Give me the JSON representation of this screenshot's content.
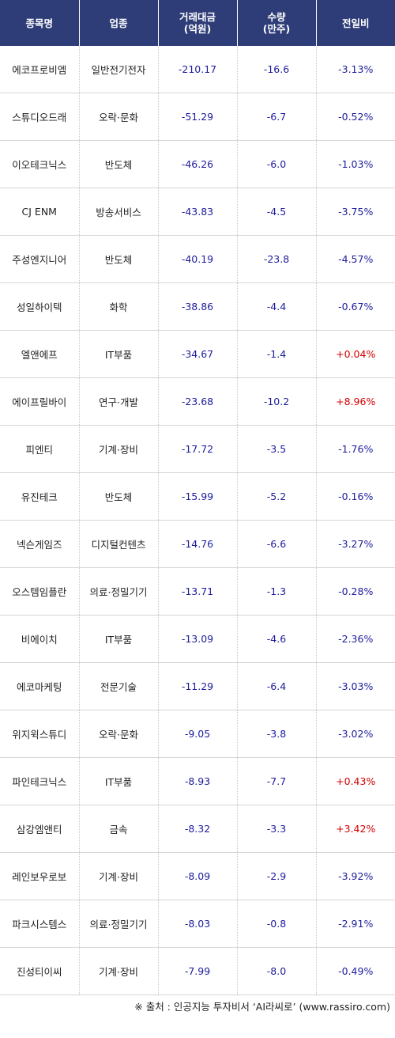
{
  "headers": {
    "name": "종목명",
    "sector": "업종",
    "amount_line1": "거래대금",
    "amount_line2": "(억원)",
    "qty_line1": "수량",
    "qty_line2": "(만주)",
    "change": "전일비"
  },
  "rows": [
    {
      "name": "에코프로비엠",
      "sector": "일반전기전자",
      "amount": "-210.17",
      "qty": "-16.6",
      "change": "-3.13%",
      "up": false
    },
    {
      "name": "스튜디오드래",
      "sector": "오락·문화",
      "amount": "-51.29",
      "qty": "-6.7",
      "change": "-0.52%",
      "up": false
    },
    {
      "name": "이오테크닉스",
      "sector": "반도체",
      "amount": "-46.26",
      "qty": "-6.0",
      "change": "-1.03%",
      "up": false
    },
    {
      "name": "CJ ENM",
      "sector": "방송서비스",
      "amount": "-43.83",
      "qty": "-4.5",
      "change": "-3.75%",
      "up": false
    },
    {
      "name": "주성엔지니어",
      "sector": "반도체",
      "amount": "-40.19",
      "qty": "-23.8",
      "change": "-4.57%",
      "up": false
    },
    {
      "name": "성일하이텍",
      "sector": "화학",
      "amount": "-38.86",
      "qty": "-4.4",
      "change": "-0.67%",
      "up": false
    },
    {
      "name": "엘앤에프",
      "sector": "IT부품",
      "amount": "-34.67",
      "qty": "-1.4",
      "change": "+0.04%",
      "up": true
    },
    {
      "name": "에이프릴바이",
      "sector": "연구·개발",
      "amount": "-23.68",
      "qty": "-10.2",
      "change": "+8.96%",
      "up": true
    },
    {
      "name": "피엔티",
      "sector": "기계·장비",
      "amount": "-17.72",
      "qty": "-3.5",
      "change": "-1.76%",
      "up": false
    },
    {
      "name": "유진테크",
      "sector": "반도체",
      "amount": "-15.99",
      "qty": "-5.2",
      "change": "-0.16%",
      "up": false
    },
    {
      "name": "넥슨게임즈",
      "sector": "디지털컨텐츠",
      "amount": "-14.76",
      "qty": "-6.6",
      "change": "-3.27%",
      "up": false
    },
    {
      "name": "오스템임플란",
      "sector": "의료·정밀기기",
      "amount": "-13.71",
      "qty": "-1.3",
      "change": "-0.28%",
      "up": false
    },
    {
      "name": "비에이치",
      "sector": "IT부품",
      "amount": "-13.09",
      "qty": "-4.6",
      "change": "-2.36%",
      "up": false
    },
    {
      "name": "에코마케팅",
      "sector": "전문기술",
      "amount": "-11.29",
      "qty": "-6.4",
      "change": "-3.03%",
      "up": false
    },
    {
      "name": "위지윅스튜디",
      "sector": "오락·문화",
      "amount": "-9.05",
      "qty": "-3.8",
      "change": "-3.02%",
      "up": false
    },
    {
      "name": "파인테크닉스",
      "sector": "IT부품",
      "amount": "-8.93",
      "qty": "-7.7",
      "change": "+0.43%",
      "up": true
    },
    {
      "name": "삼강엠앤티",
      "sector": "금속",
      "amount": "-8.32",
      "qty": "-3.3",
      "change": "+3.42%",
      "up": true
    },
    {
      "name": "레인보우로보",
      "sector": "기계·장비",
      "amount": "-8.09",
      "qty": "-2.9",
      "change": "-3.92%",
      "up": false
    },
    {
      "name": "파크시스템스",
      "sector": "의료·정밀기기",
      "amount": "-8.03",
      "qty": "-0.8",
      "change": "-2.91%",
      "up": false
    },
    {
      "name": "진성티이씨",
      "sector": "기계·장비",
      "amount": "-7.99",
      "qty": "-8.0",
      "change": "-0.49%",
      "up": false
    }
  ],
  "footer": "※ 출처 : 인공지능 투자비서 ‘AI라씨로’ (www.rassiro.com)",
  "colors": {
    "header_bg": "#2e3d78",
    "negative": "#1c1c9c",
    "positive": "#d40000"
  }
}
